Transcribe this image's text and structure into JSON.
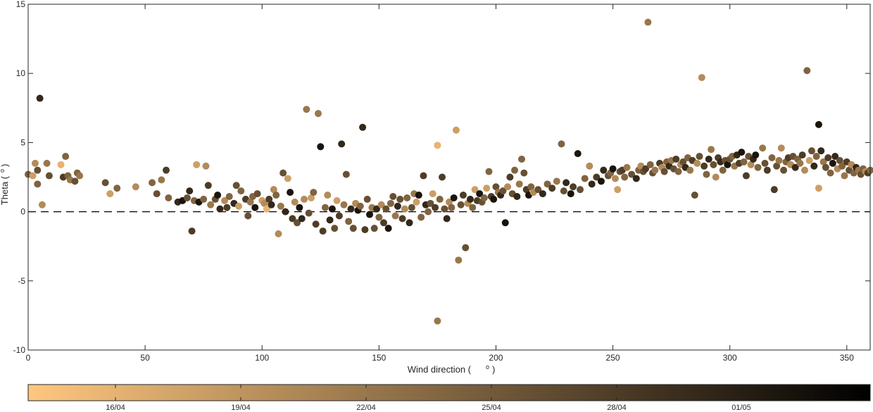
{
  "chart_data": {
    "type": "scatter",
    "xlabel": "Wind direction (",
    "xlabel_unit": "o",
    "xlabel_close": ")",
    "ylabel": "Theta (",
    "ylabel_unit": "o",
    "ylabel_close": ")",
    "xlim": [
      0,
      360
    ],
    "ylim": [
      -10,
      15
    ],
    "xticks": [
      0,
      50,
      100,
      150,
      200,
      250,
      300,
      350
    ],
    "yticks": [
      -10,
      -5,
      0,
      5,
      10,
      15
    ],
    "grid": false,
    "reference_line": {
      "y": 0,
      "style": "dashed"
    },
    "colormap": "copper (reversed)",
    "color_light": "#ffc77f",
    "color_dark": "#000000",
    "colorbar": {
      "ticks": [
        "16/04",
        "19/04",
        "22/04",
        "25/04",
        "28/04",
        "01/05"
      ]
    },
    "points": [
      [
        0,
        2.7,
        0.5
      ],
      [
        2,
        2.6,
        0.2
      ],
      [
        3,
        3.5,
        0.3
      ],
      [
        4,
        3.0,
        0.6
      ],
      [
        5,
        8.2,
        0.8
      ],
      [
        4,
        2.0,
        0.5
      ],
      [
        6,
        0.5,
        0.3
      ],
      [
        8,
        3.5,
        0.4
      ],
      [
        9,
        2.6,
        0.6
      ],
      [
        14,
        3.4,
        0.1
      ],
      [
        15,
        2.5,
        0.7
      ],
      [
        16,
        4.0,
        0.5
      ],
      [
        17,
        2.6,
        0.5
      ],
      [
        18,
        2.3,
        0.4
      ],
      [
        20,
        2.2,
        0.6
      ],
      [
        21,
        2.8,
        0.5
      ],
      [
        22,
        2.6,
        0.4
      ],
      [
        33,
        2.1,
        0.6
      ],
      [
        35,
        1.3,
        0.2
      ],
      [
        38,
        1.7,
        0.5
      ],
      [
        46,
        1.8,
        0.3
      ],
      [
        53,
        2.1,
        0.5
      ],
      [
        55,
        1.3,
        0.6
      ],
      [
        57,
        2.3,
        0.4
      ],
      [
        59,
        3.0,
        0.7
      ],
      [
        60,
        1.0,
        0.5
      ],
      [
        64,
        0.7,
        0.8
      ],
      [
        66,
        0.8,
        0.9
      ],
      [
        68,
        1.0,
        0.6
      ],
      [
        69,
        1.5,
        0.8
      ],
      [
        70,
        -1.4,
        0.7
      ],
      [
        71,
        0.8,
        0.5
      ],
      [
        72,
        3.4,
        0.2
      ],
      [
        73,
        0.7,
        0.9
      ],
      [
        75,
        0.9,
        0.5
      ],
      [
        76,
        3.3,
        0.3
      ],
      [
        77,
        1.9,
        0.7
      ],
      [
        78,
        0.5,
        0.4
      ],
      [
        80,
        0.9,
        0.6
      ],
      [
        81,
        1.2,
        0.9
      ],
      [
        82,
        0.2,
        0.8
      ],
      [
        84,
        0.8,
        0.3
      ],
      [
        85,
        0.3,
        0.7
      ],
      [
        86,
        1.1,
        0.5
      ],
      [
        88,
        0.6,
        0.8
      ],
      [
        89,
        1.9,
        0.6
      ],
      [
        90,
        0.4,
        0.2
      ],
      [
        91,
        1.5,
        0.5
      ],
      [
        93,
        0.9,
        0.7
      ],
      [
        94,
        -0.3,
        0.6
      ],
      [
        95,
        0.7,
        0.4
      ],
      [
        96,
        1.1,
        0.5
      ],
      [
        97,
        0.3,
        0.9
      ],
      [
        98,
        1.3,
        0.6
      ],
      [
        100,
        0.8,
        0.2
      ],
      [
        101,
        0.6,
        0.3
      ],
      [
        102,
        0.2,
        0.1
      ],
      [
        103,
        0.9,
        0.7
      ],
      [
        104,
        0.5,
        0.8
      ],
      [
        105,
        1.6,
        0.3
      ],
      [
        106,
        1.2,
        0.5
      ],
      [
        107,
        -1.6,
        0.3
      ],
      [
        108,
        0.4,
        0.4
      ],
      [
        109,
        2.8,
        0.6
      ],
      [
        110,
        0.0,
        0.8
      ],
      [
        111,
        2.4,
        0.2
      ],
      [
        112,
        1.4,
        0.9
      ],
      [
        113,
        -0.5,
        0.7
      ],
      [
        114,
        0.7,
        0.3
      ],
      [
        115,
        -0.8,
        0.6
      ],
      [
        116,
        0.3,
        0.9
      ],
      [
        117,
        -0.5,
        0.8
      ],
      [
        118,
        0.9,
        0.3
      ],
      [
        119,
        7.4,
        0.4
      ],
      [
        120,
        -0.1,
        0.6
      ],
      [
        121,
        1.0,
        0.2
      ],
      [
        122,
        1.4,
        0.5
      ],
      [
        123,
        -0.9,
        0.7
      ],
      [
        124,
        7.1,
        0.4
      ],
      [
        125,
        4.7,
        0.9
      ],
      [
        126,
        -1.4,
        0.7
      ],
      [
        127,
        0.3,
        0.5
      ],
      [
        128,
        1.2,
        0.3
      ],
      [
        129,
        -0.6,
        0.8
      ],
      [
        130,
        0.2,
        0.9
      ],
      [
        131,
        -1.2,
        0.6
      ],
      [
        132,
        0.8,
        0.2
      ],
      [
        133,
        -0.3,
        0.7
      ],
      [
        134,
        4.9,
        0.8
      ],
      [
        135,
        0.5,
        0.4
      ],
      [
        136,
        2.7,
        0.6
      ],
      [
        137,
        -0.7,
        0.5
      ],
      [
        138,
        0.2,
        0.8
      ],
      [
        139,
        -1.2,
        0.6
      ],
      [
        140,
        0.6,
        0.3
      ],
      [
        141,
        0.1,
        0.9
      ],
      [
        142,
        0.4,
        0.5
      ],
      [
        143,
        6.1,
        0.8
      ],
      [
        144,
        -1.3,
        0.7
      ],
      [
        145,
        0.9,
        0.6
      ],
      [
        146,
        -0.2,
        0.9
      ],
      [
        147,
        0.3,
        0.4
      ],
      [
        148,
        -1.2,
        0.6
      ],
      [
        149,
        0.2,
        0.8
      ],
      [
        150,
        -0.4,
        0.5
      ],
      [
        151,
        0.5,
        0.3
      ],
      [
        152,
        -0.8,
        0.7
      ],
      [
        153,
        0.2,
        0.6
      ],
      [
        154,
        -1.2,
        0.9
      ],
      [
        155,
        0.6,
        0.5
      ],
      [
        156,
        1.1,
        0.6
      ],
      [
        157,
        -0.3,
        0.4
      ],
      [
        158,
        0.4,
        0.8
      ],
      [
        159,
        0.9,
        0.6
      ],
      [
        160,
        -0.5,
        0.7
      ],
      [
        161,
        0.2,
        0.3
      ],
      [
        162,
        1.0,
        0.5
      ],
      [
        163,
        -0.8,
        0.8
      ],
      [
        164,
        0.3,
        0.6
      ],
      [
        165,
        1.3,
        0.4
      ],
      [
        166,
        0.7,
        0.2
      ],
      [
        167,
        1.2,
        0.9
      ],
      [
        168,
        -0.4,
        0.5
      ],
      [
        169,
        2.6,
        0.7
      ],
      [
        170,
        0.5,
        0.8
      ],
      [
        171,
        0.0,
        0.5
      ],
      [
        172,
        0.6,
        0.6
      ],
      [
        173,
        1.3,
        0.2
      ],
      [
        174,
        0.3,
        0.7
      ],
      [
        175,
        4.8,
        0.1
      ],
      [
        175,
        -7.9,
        0.4
      ],
      [
        176,
        0.9,
        0.5
      ],
      [
        177,
        2.5,
        0.7
      ],
      [
        178,
        0.2,
        0.6
      ],
      [
        179,
        -0.5,
        0.8
      ],
      [
        180,
        0.7,
        0.3
      ],
      [
        181,
        0.3,
        0.5
      ],
      [
        182,
        1.0,
        0.9
      ],
      [
        183,
        5.9,
        0.2
      ],
      [
        184,
        -3.5,
        0.4
      ],
      [
        185,
        0.5,
        0.6
      ],
      [
        186,
        1.2,
        0.7
      ],
      [
        187,
        -2.6,
        0.6
      ],
      [
        188,
        0.6,
        0.3
      ],
      [
        189,
        0.9,
        0.8
      ],
      [
        190,
        0.3,
        0.5
      ],
      [
        191,
        1.6,
        0.2
      ],
      [
        192,
        0.8,
        0.7
      ],
      [
        193,
        1.3,
        0.9
      ],
      [
        194,
        0.7,
        0.6
      ],
      [
        195,
        1.0,
        0.5
      ],
      [
        196,
        1.7,
        0.2
      ],
      [
        197,
        2.9,
        0.5
      ],
      [
        198,
        1.1,
        0.7
      ],
      [
        199,
        0.9,
        0.9
      ],
      [
        200,
        1.8,
        0.6
      ],
      [
        201,
        1.4,
        0.4
      ],
      [
        202,
        1.2,
        0.8
      ],
      [
        203,
        1.5,
        0.6
      ],
      [
        204,
        -0.8,
        0.9
      ],
      [
        205,
        1.8,
        0.3
      ],
      [
        206,
        2.5,
        0.7
      ],
      [
        207,
        1.3,
        0.6
      ],
      [
        208,
        3.0,
        0.5
      ],
      [
        209,
        1.1,
        0.8
      ],
      [
        210,
        2.0,
        0.4
      ],
      [
        211,
        3.8,
        0.5
      ],
      [
        212,
        2.8,
        0.6
      ],
      [
        213,
        1.6,
        0.7
      ],
      [
        214,
        1.2,
        0.9
      ],
      [
        215,
        1.8,
        0.5
      ],
      [
        216,
        1.4,
        0.3
      ],
      [
        218,
        1.6,
        0.6
      ],
      [
        220,
        1.3,
        0.8
      ],
      [
        222,
        2.0,
        0.5
      ],
      [
        224,
        1.7,
        0.7
      ],
      [
        226,
        2.2,
        0.4
      ],
      [
        228,
        4.9,
        0.5
      ],
      [
        229,
        1.5,
        0.6
      ],
      [
        230,
        2.1,
        0.8
      ],
      [
        232,
        1.3,
        0.9
      ],
      [
        233,
        1.8,
        0.7
      ],
      [
        235,
        4.2,
        0.9
      ],
      [
        236,
        1.6,
        0.6
      ],
      [
        238,
        2.4,
        0.5
      ],
      [
        240,
        3.3,
        0.3
      ],
      [
        241,
        2.0,
        0.8
      ],
      [
        243,
        2.5,
        0.7
      ],
      [
        245,
        2.2,
        0.9
      ],
      [
        246,
        3.0,
        0.8
      ],
      [
        248,
        2.6,
        0.6
      ],
      [
        249,
        2.8,
        0.5
      ],
      [
        250,
        3.1,
        0.9
      ],
      [
        251,
        2.4,
        0.3
      ],
      [
        252,
        1.6,
        0.2
      ],
      [
        253,
        2.9,
        0.6
      ],
      [
        254,
        3.0,
        0.7
      ],
      [
        255,
        2.5,
        0.5
      ],
      [
        256,
        3.2,
        0.4
      ],
      [
        258,
        2.7,
        0.6
      ],
      [
        260,
        2.4,
        0.8
      ],
      [
        261,
        3.0,
        0.5
      ],
      [
        262,
        3.3,
        0.3
      ],
      [
        263,
        2.9,
        0.6
      ],
      [
        264,
        3.1,
        0.7
      ],
      [
        265,
        13.7,
        0.4
      ],
      [
        266,
        3.4,
        0.5
      ],
      [
        267,
        2.8,
        0.6
      ],
      [
        268,
        3.0,
        0.4
      ],
      [
        270,
        3.5,
        0.7
      ],
      [
        271,
        3.2,
        0.3
      ],
      [
        272,
        2.9,
        0.6
      ],
      [
        273,
        3.6,
        0.5
      ],
      [
        274,
        3.3,
        0.8
      ],
      [
        275,
        3.7,
        0.4
      ],
      [
        276,
        3.1,
        0.6
      ],
      [
        277,
        3.8,
        0.7
      ],
      [
        278,
        2.9,
        0.5
      ],
      [
        279,
        3.4,
        0.3
      ],
      [
        280,
        3.6,
        0.6
      ],
      [
        281,
        3.2,
        0.8
      ],
      [
        282,
        3.9,
        0.5
      ],
      [
        283,
        3.0,
        0.4
      ],
      [
        284,
        3.7,
        0.7
      ],
      [
        285,
        1.2,
        0.6
      ],
      [
        286,
        3.5,
        0.3
      ],
      [
        287,
        4.0,
        0.6
      ],
      [
        288,
        9.7,
        0.3
      ],
      [
        289,
        3.3,
        0.7
      ],
      [
        290,
        2.7,
        0.5
      ],
      [
        291,
        3.8,
        0.8
      ],
      [
        292,
        4.5,
        0.4
      ],
      [
        293,
        3.4,
        0.6
      ],
      [
        294,
        2.5,
        0.3
      ],
      [
        295,
        3.9,
        0.7
      ],
      [
        296,
        3.6,
        0.8
      ],
      [
        297,
        3.0,
        0.5
      ],
      [
        298,
        3.7,
        0.6
      ],
      [
        299,
        3.4,
        0.9
      ],
      [
        300,
        3.8,
        0.6
      ],
      [
        301,
        4.0,
        0.5
      ],
      [
        302,
        3.3,
        0.4
      ],
      [
        303,
        4.1,
        0.8
      ],
      [
        304,
        3.5,
        0.7
      ],
      [
        305,
        4.3,
        0.9
      ],
      [
        306,
        3.6,
        0.5
      ],
      [
        307,
        2.6,
        0.7
      ],
      [
        308,
        4.0,
        0.6
      ],
      [
        309,
        3.4,
        0.3
      ],
      [
        310,
        3.8,
        0.8
      ],
      [
        311,
        4.1,
        0.9
      ],
      [
        312,
        3.2,
        0.5
      ],
      [
        314,
        4.6,
        0.4
      ],
      [
        315,
        3.5,
        0.6
      ],
      [
        316,
        3.0,
        0.7
      ],
      [
        318,
        3.9,
        0.5
      ],
      [
        319,
        1.6,
        0.7
      ],
      [
        320,
        3.3,
        0.6
      ],
      [
        321,
        3.7,
        0.4
      ],
      [
        322,
        4.6,
        0.3
      ],
      [
        323,
        3.0,
        0.6
      ],
      [
        324,
        3.6,
        0.5
      ],
      [
        325,
        3.9,
        0.7
      ],
      [
        326,
        3.4,
        0.3
      ],
      [
        327,
        4.0,
        0.6
      ],
      [
        328,
        3.2,
        0.8
      ],
      [
        329,
        3.8,
        0.5
      ],
      [
        330,
        3.5,
        0.4
      ],
      [
        331,
        4.1,
        0.7
      ],
      [
        332,
        3.0,
        0.3
      ],
      [
        333,
        10.2,
        0.5
      ],
      [
        334,
        3.7,
        0.2
      ],
      [
        335,
        4.4,
        0.6
      ],
      [
        336,
        3.3,
        0.8
      ],
      [
        337,
        4.0,
        0.5
      ],
      [
        338,
        6.3,
        0.9
      ],
      [
        338,
        1.7,
        0.2
      ],
      [
        339,
        4.4,
        0.8
      ],
      [
        340,
        3.6,
        0.4
      ],
      [
        341,
        3.2,
        0.6
      ],
      [
        342,
        3.9,
        0.7
      ],
      [
        343,
        2.8,
        0.5
      ],
      [
        344,
        3.5,
        0.9
      ],
      [
        345,
        4.0,
        0.8
      ],
      [
        346,
        3.1,
        0.3
      ],
      [
        347,
        3.7,
        0.6
      ],
      [
        348,
        3.3,
        0.5
      ],
      [
        349,
        2.6,
        0.4
      ],
      [
        350,
        3.6,
        0.7
      ],
      [
        351,
        3.0,
        0.6
      ],
      [
        352,
        3.4,
        0.3
      ],
      [
        353,
        2.8,
        0.5
      ],
      [
        354,
        3.2,
        0.8
      ],
      [
        355,
        3.0,
        0.4
      ],
      [
        356,
        2.7,
        0.6
      ],
      [
        357,
        3.1,
        0.5
      ],
      [
        358,
        2.9,
        0.3
      ],
      [
        359,
        2.8,
        0.7
      ],
      [
        360,
        3.0,
        0.5
      ]
    ]
  }
}
